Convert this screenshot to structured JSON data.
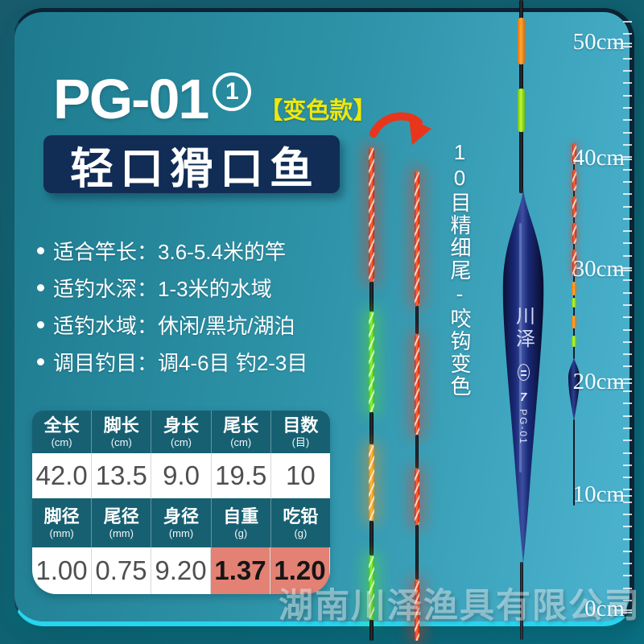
{
  "header": {
    "model": "PG-01",
    "circled_number": "1",
    "variant_badge": "【变色款】",
    "banner": "轻口猾口鱼"
  },
  "bullets": [
    {
      "label": "适合竿长：",
      "value": "3.6-5.4米的竿"
    },
    {
      "label": "适钓水深：",
      "value": "1-3米的水域"
    },
    {
      "label": "适钓水域：",
      "value": "休闲/黑坑/湖泊"
    },
    {
      "label": "调目钓目：",
      "value": "调4-6目 钓2-3目"
    }
  ],
  "vertical_caption": "10目精细尾-咬钩变色",
  "spec_table": {
    "row1_headers": [
      {
        "label": "全长",
        "unit": "(cm)"
      },
      {
        "label": "脚长",
        "unit": "(cm)"
      },
      {
        "label": "身长",
        "unit": "(cm)"
      },
      {
        "label": "尾长",
        "unit": "(cm)"
      },
      {
        "label": "目数",
        "unit": "(目)"
      }
    ],
    "row1_values": [
      "42.0",
      "13.5",
      "9.0",
      "19.5",
      "10"
    ],
    "row2_headers": [
      {
        "label": "脚径",
        "unit": "(mm)"
      },
      {
        "label": "尾径",
        "unit": "(mm)"
      },
      {
        "label": "身径",
        "unit": "(mm)"
      },
      {
        "label": "自重",
        "unit": "(g)"
      },
      {
        "label": "吃铅",
        "unit": "(g)"
      }
    ],
    "row2_values": [
      "1.00",
      "0.75",
      "9.20",
      "1.37",
      "1.20"
    ]
  },
  "ruler": {
    "labels": [
      "50cm",
      "40cm",
      "30cm",
      "20cm",
      "10cm",
      "0cm"
    ]
  },
  "float_markings": {
    "brand": "川泽",
    "size_number": "7",
    "model": "PG-01"
  },
  "watermark": "湖南川泽渔具有限公司",
  "colors": {
    "accent_yellow": "#f0e70a",
    "banner_navy": "#112d56",
    "table_header_teal": "#176072",
    "highlight_salmon": "#e28174",
    "panel_teal_left": "#1e7a8e",
    "panel_teal_right": "#4ab1cd",
    "float_body_navy": "#1b2a78",
    "glow_red": "#ff3c14",
    "glow_green": "#58e818",
    "glow_orange": "#ffa414"
  }
}
